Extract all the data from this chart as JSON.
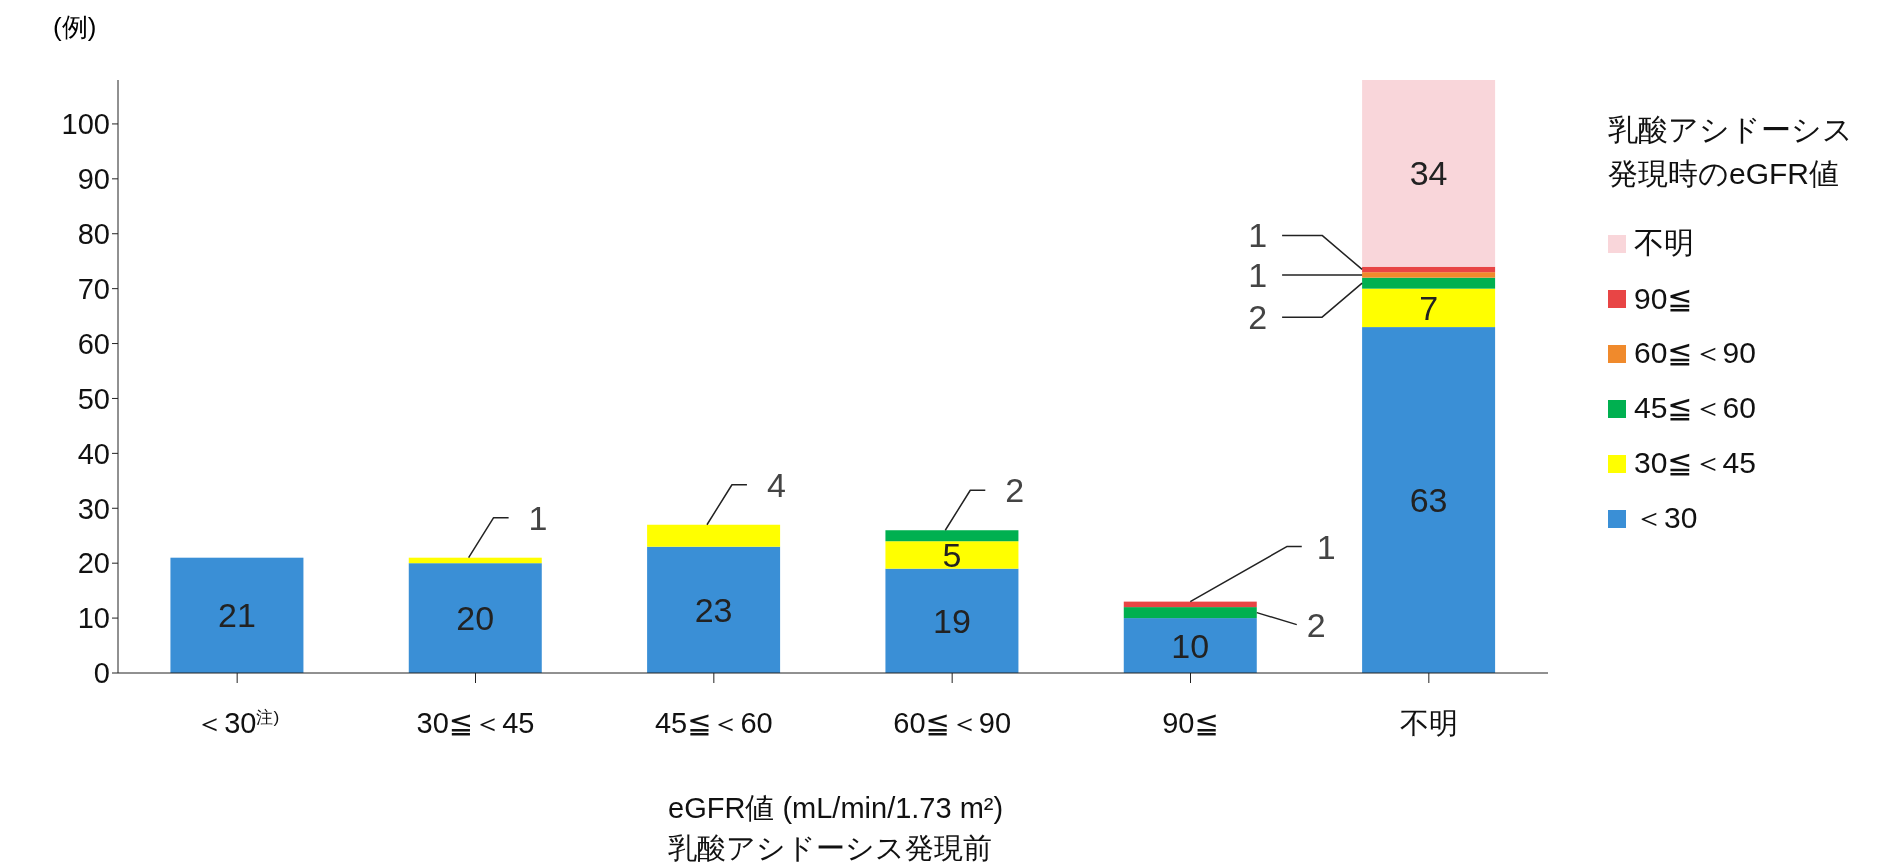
{
  "chart_data": {
    "type": "bar",
    "stacked": true,
    "ylabel": "(例)",
    "xlabel": "eGFR値 (mL/min/1.73 m²)\n乳酸アシドーシス発現前",
    "legend_title": "乳酸アシドーシス発現時のeGFR値",
    "legend": "right",
    "grid": false,
    "categories": [
      "＜30$^{注)}$",
      "30≦＜45",
      "45≦＜60",
      "60≦＜90",
      "90≦",
      "不明"
    ],
    "ylim": [
      0,
      108
    ],
    "yticks": [
      0,
      10,
      20,
      30,
      40,
      50,
      60,
      70,
      80,
      90,
      100
    ],
    "series": [
      {
        "name": "＜30",
        "color": "#3a8fd6",
        "values": [
          21,
          20,
          23,
          19,
          10,
          63
        ],
        "value_labels": [
          "21",
          "20",
          "23",
          "19",
          "10",
          "63"
        ]
      },
      {
        "name": "30≦＜45",
        "color": "#ffff00",
        "values": [
          null,
          1,
          4,
          5,
          null,
          7
        ],
        "value_labels": [
          null,
          "1",
          "4",
          "5",
          null,
          "7"
        ]
      },
      {
        "name": "45≦＜60",
        "color": "#00b050",
        "values": [
          null,
          null,
          null,
          2,
          2,
          2
        ],
        "value_labels": [
          null,
          null,
          null,
          "2",
          "2",
          "2"
        ]
      },
      {
        "name": "60≦＜90",
        "color": "#f08a2c",
        "values": [
          null,
          null,
          null,
          null,
          null,
          1
        ],
        "value_labels": [
          null,
          null,
          null,
          null,
          null,
          "1"
        ]
      },
      {
        "name": "90≦",
        "color": "#e84545",
        "values": [
          null,
          null,
          null,
          null,
          1,
          1
        ],
        "value_labels": [
          null,
          null,
          null,
          null,
          "1",
          "1"
        ]
      },
      {
        "name": "不明",
        "color": "#f9d6da",
        "values": [
          null,
          null,
          null,
          null,
          null,
          34
        ],
        "value_labels": [
          null,
          null,
          null,
          null,
          null,
          "34"
        ]
      }
    ]
  }
}
